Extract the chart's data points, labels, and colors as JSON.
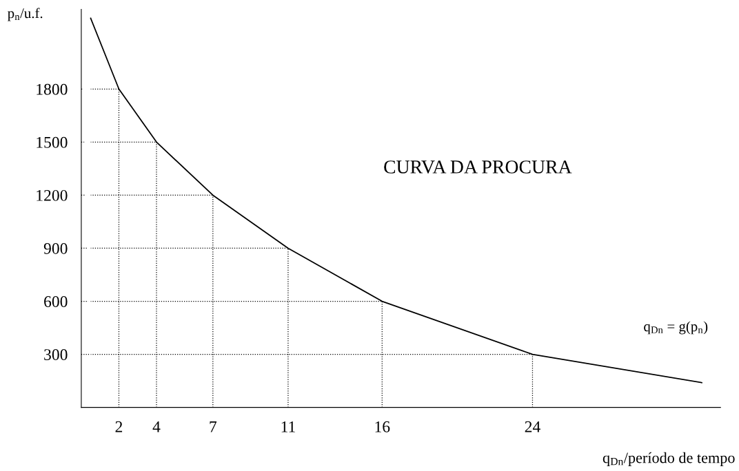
{
  "chart_data": {
    "type": "line",
    "ylabel": "p$_{n}$/u.f.",
    "xlabel": "q$_{Dn}$/período de tempo",
    "annotations": [
      "CURVA DA PROCURA",
      "q$_{Dn}$ = g(p$_{n}$)"
    ],
    "series": [
      {
        "color": "#000000",
        "x": [
          0.5,
          2,
          4,
          7,
          11,
          16,
          24,
          33
        ],
        "values": [
          2200,
          1800,
          1500,
          1200,
          900,
          600,
          300,
          140
        ]
      }
    ],
    "xlim": [
      0,
      34
    ],
    "xticks": [
      2,
      4,
      7,
      11,
      16,
      24
    ],
    "ylim": [
      0,
      2250
    ],
    "yticks": [
      300,
      600,
      900,
      1200,
      1500,
      1800
    ],
    "grid": true,
    "marker": "none",
    "line_style": "solid"
  }
}
